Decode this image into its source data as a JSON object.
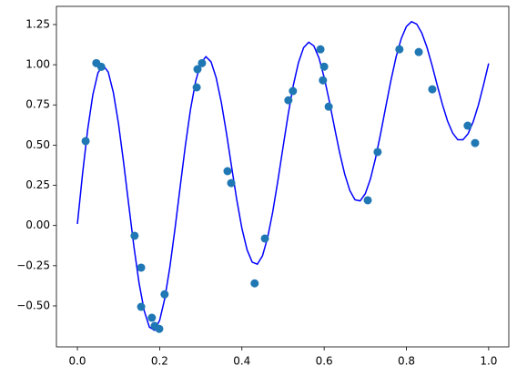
{
  "chart_data": {
    "type": "combo",
    "xlim": [
      -0.051,
      1.049
    ],
    "ylim": [
      -0.755,
      1.363
    ],
    "xticks": [
      {
        "value": 0,
        "label": "0.0"
      },
      {
        "value": 0.2,
        "label": "0.2"
      },
      {
        "value": 0.4,
        "label": "0.4"
      },
      {
        "value": 0.6,
        "label": "0.6"
      },
      {
        "value": 0.8,
        "label": "0.8"
      },
      {
        "value": 1,
        "label": "1.0"
      }
    ],
    "yticks": [
      {
        "value": -0.5,
        "label": "−0.50"
      },
      {
        "value": -0.25,
        "label": "−0.25"
      },
      {
        "value": 0,
        "label": "0.00"
      },
      {
        "value": 0.25,
        "label": "0.25"
      },
      {
        "value": 0.5,
        "label": "0.50"
      },
      {
        "value": 0.75,
        "label": "0.75"
      },
      {
        "value": 1,
        "label": "1.00"
      },
      {
        "value": 1.25,
        "label": "1.25"
      }
    ],
    "series": [
      {
        "type": "line",
        "color": "#0000ff",
        "x": [
          0,
          0.0125,
          0.025,
          0.0375,
          0.05,
          0.0625,
          0.075,
          0.0875,
          0.1,
          0.1125,
          0.125,
          0.1375,
          0.15,
          0.1625,
          0.175,
          0.1875,
          0.2,
          0.2125,
          0.225,
          0.2375,
          0.25,
          0.2625,
          0.275,
          0.2875,
          0.3,
          0.3125,
          0.325,
          0.3375,
          0.35,
          0.3625,
          0.375,
          0.3875,
          0.4,
          0.4125,
          0.425,
          0.4375,
          0.45,
          0.4625,
          0.475,
          0.4875,
          0.5,
          0.5125,
          0.525,
          0.5375,
          0.55,
          0.5625,
          0.575,
          0.5875,
          0.6,
          0.6125,
          0.625,
          0.6375,
          0.65,
          0.6625,
          0.675,
          0.6875,
          0.7,
          0.7125,
          0.725,
          0.7375,
          0.75,
          0.7625,
          0.775,
          0.7875,
          0.8,
          0.8125,
          0.825,
          0.8375,
          0.85,
          0.8625,
          0.875,
          0.8875,
          0.9,
          0.9125,
          0.925,
          0.9375,
          0.95,
          0.9625,
          0.975,
          0.9875,
          1
        ],
        "values": [
          0.01,
          0.321,
          0.597,
          0.813,
          0.95,
          0.997,
          0.954,
          0.826,
          0.632,
          0.389,
          0.125,
          -0.133,
          -0.359,
          -0.531,
          -0.632,
          -0.652,
          -0.59,
          -0.454,
          -0.256,
          -0.016,
          0.243,
          0.497,
          0.722,
          0.897,
          1.01,
          1.05,
          1.018,
          0.918,
          0.765,
          0.573,
          0.364,
          0.16,
          -0.018,
          -0.151,
          -0.228,
          -0.241,
          -0.189,
          -0.076,
          0.085,
          0.279,
          0.487,
          0.691,
          0.872,
          1.013,
          1.106,
          1.14,
          1.117,
          1.041,
          0.922,
          0.774,
          0.612,
          0.455,
          0.319,
          0.217,
          0.16,
          0.153,
          0.198,
          0.289,
          0.419,
          0.574,
          0.741,
          0.904,
          1.049,
          1.163,
          1.238,
          1.268,
          1.253,
          1.197,
          1.108,
          0.995,
          0.872,
          0.754,
          0.65,
          0.575,
          0.533,
          0.533,
          0.571,
          0.646,
          0.749,
          0.874,
          1.008
        ]
      },
      {
        "type": "scatter",
        "color": "#1f77b4",
        "x": [
          0.02,
          0.046,
          0.058,
          0.139,
          0.155,
          0.155,
          0.181,
          0.188,
          0.199,
          0.212,
          0.29,
          0.292,
          0.303,
          0.365,
          0.374,
          0.431,
          0.456,
          0.513,
          0.524,
          0.591,
          0.6,
          0.597,
          0.611,
          0.706,
          0.73,
          0.783,
          0.83,
          0.863,
          0.949,
          0.967
        ],
        "values": [
          0.525,
          1.01,
          0.987,
          -0.064,
          -0.262,
          -0.506,
          -0.574,
          -0.625,
          -0.643,
          -0.428,
          0.859,
          0.972,
          1.01,
          0.338,
          0.264,
          -0.36,
          -0.081,
          0.779,
          0.836,
          1.096,
          0.988,
          0.903,
          0.739,
          0.157,
          0.457,
          1.096,
          1.079,
          0.847,
          0.621,
          0.513
        ]
      }
    ]
  }
}
